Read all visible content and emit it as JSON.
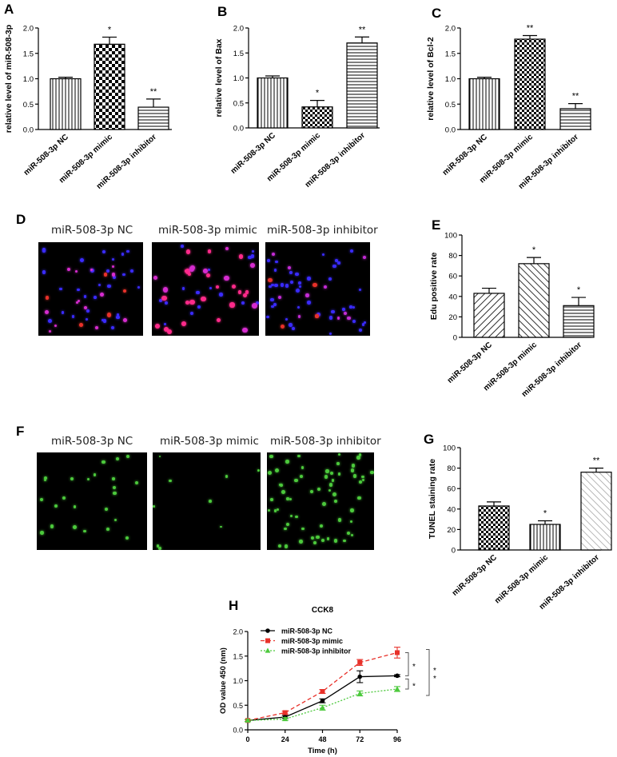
{
  "colors": {
    "red": "#e8312a",
    "green": "#4cc93c",
    "black": "#000000"
  },
  "panels": {
    "A": "A",
    "B": "B",
    "C": "C",
    "D": "D",
    "E": "E",
    "F": "F",
    "G": "G",
    "H": "H"
  },
  "micrographs": {
    "D": {
      "labels": [
        "miR-508-3p NC",
        "miR-508-3p mimic",
        "miR-508-3p inhibitor"
      ]
    },
    "F": {
      "labels": [
        "miR-508-3p NC",
        "miR-508-3p mimic",
        "miR-508-3p inhibitor"
      ]
    }
  },
  "chart_data": [
    {
      "id": "A",
      "type": "bar",
      "ylabel": "relative  level of miR-508-3p",
      "ylim": [
        0,
        2.0
      ],
      "yticks": [
        "0.0",
        "0.5",
        "1.0",
        "1.5",
        "2.0"
      ],
      "categories": [
        "miR-508-3p NC",
        "miR-508-3p mimic",
        "miR-508-3p inhibitor"
      ],
      "values": [
        1.0,
        1.68,
        0.44
      ],
      "errors": [
        0.03,
        0.14,
        0.16
      ],
      "annotations": [
        "",
        "*",
        "**"
      ]
    },
    {
      "id": "B",
      "type": "bar",
      "ylabel": "relative  level of Bax",
      "ylim": [
        0,
        2.0
      ],
      "yticks": [
        "0.0",
        "0.5",
        "1.0",
        "1.5",
        "2.0"
      ],
      "categories": [
        "miR-508-3p NC",
        "miR-508-3p mimic",
        "miR-508-3p inhibitor"
      ],
      "values": [
        1.0,
        0.42,
        1.7
      ],
      "errors": [
        0.04,
        0.13,
        0.12
      ],
      "annotations": [
        "",
        "*",
        "**"
      ]
    },
    {
      "id": "C",
      "type": "bar",
      "ylabel": "relative  level of Bcl-2",
      "ylim": [
        0,
        2.0
      ],
      "yticks": [
        "0.0",
        "0.5",
        "1.0",
        "1.5",
        "2.0"
      ],
      "categories": [
        "miR-508-3p NC",
        "miR-508-3p mimic",
        "miR-508-3p inhibitor"
      ],
      "values": [
        1.0,
        1.78,
        0.41
      ],
      "errors": [
        0.03,
        0.07,
        0.1
      ],
      "annotations": [
        "",
        "**",
        "**"
      ]
    },
    {
      "id": "E",
      "type": "bar",
      "ylabel": "Edu positive rate",
      "ylim": [
        0,
        100
      ],
      "yticks": [
        "0",
        "20",
        "40",
        "60",
        "80",
        "100"
      ],
      "categories": [
        "miR-508-3p NC",
        "miR-508-3p mimic",
        "miR-508-3p inhibitor"
      ],
      "values": [
        43,
        72,
        31
      ],
      "errors": [
        5,
        6,
        8
      ],
      "annotations": [
        "",
        "*",
        "*"
      ]
    },
    {
      "id": "G",
      "type": "bar",
      "ylabel": "TUNEL staining rate",
      "ylim": [
        0,
        100
      ],
      "yticks": [
        "0",
        "20",
        "40",
        "60",
        "80",
        "100"
      ],
      "categories": [
        "miR-508-3p NC",
        "miR-508-3p mimic",
        "miR-508-3p inhibitor"
      ],
      "values": [
        43,
        25,
        76
      ],
      "errors": [
        4,
        3.5,
        4
      ],
      "annotations": [
        "",
        "*",
        "**"
      ]
    },
    {
      "id": "H",
      "type": "line",
      "title": "CCK8",
      "xlabel": "Time (h)",
      "ylabel": "OD value 450 (nm)",
      "xlim": [
        0,
        96
      ],
      "ylim": [
        0,
        2.0
      ],
      "xticks": [
        "0",
        "24",
        "48",
        "72",
        "96"
      ],
      "yticks": [
        "0.0",
        "0.5",
        "1.0",
        "1.5",
        "2.0"
      ],
      "x": [
        0,
        24,
        48,
        72,
        96
      ],
      "series": [
        {
          "name": "miR-508-3p NC",
          "values": [
            0.19,
            0.26,
            0.59,
            1.08,
            1.1
          ],
          "errors": [
            0.02,
            0.03,
            0.04,
            0.12,
            0.02
          ],
          "color": "#000000",
          "marker": "circle",
          "dash": "solid"
        },
        {
          "name": "miR-508-3p mimic",
          "values": [
            0.19,
            0.35,
            0.78,
            1.37,
            1.57
          ],
          "errors": [
            0.02,
            0.03,
            0.04,
            0.06,
            0.11
          ],
          "color": "#e8312a",
          "marker": "square",
          "dash": "dashed"
        },
        {
          "name": "miR-508-3p inhibitor",
          "values": [
            0.19,
            0.22,
            0.45,
            0.74,
            0.83
          ],
          "errors": [
            0.02,
            0.03,
            0.05,
            0.05,
            0.05
          ],
          "color": "#4cc93c",
          "marker": "triangle",
          "dash": "dotted"
        }
      ],
      "annotations": [
        "*",
        "*",
        "*"
      ]
    }
  ]
}
